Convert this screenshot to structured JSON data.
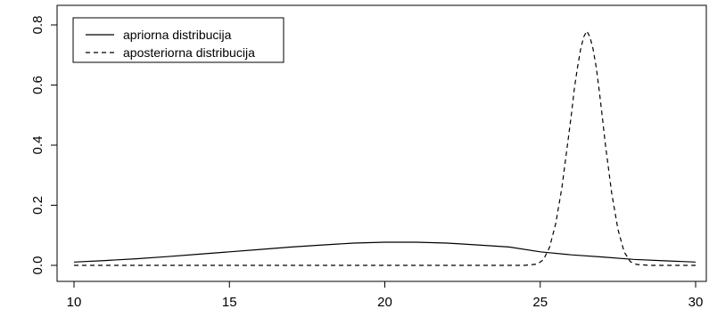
{
  "chart_data": {
    "type": "line",
    "title": "",
    "xlabel": "",
    "ylabel": "",
    "xlim": [
      10,
      30
    ],
    "ylim": [
      0,
      0.8
    ],
    "x_ticks": [
      10,
      15,
      20,
      25,
      30
    ],
    "y_ticks": [
      0.0,
      0.2,
      0.4,
      0.6,
      0.8
    ],
    "x_tick_labels": [
      "10",
      "15",
      "20",
      "25",
      "30"
    ],
    "y_tick_labels": [
      "0.0",
      "0.2",
      "0.4",
      "0.6",
      "0.8"
    ],
    "grid": false,
    "legend_position": "top-left",
    "series": [
      {
        "name": "apriorna distribucija",
        "line_style": "solid",
        "color": "#000000",
        "x": [
          10,
          11,
          12,
          13,
          14,
          15,
          16,
          17,
          18,
          19,
          20,
          21,
          22,
          23,
          24,
          25,
          26,
          27,
          28,
          29,
          30
        ],
        "y": [
          0.011,
          0.016,
          0.022,
          0.029,
          0.037,
          0.045,
          0.053,
          0.061,
          0.068,
          0.074,
          0.077,
          0.077,
          0.074,
          0.068,
          0.061,
          0.045,
          0.035,
          0.028,
          0.02,
          0.015,
          0.011
        ]
      },
      {
        "name": "aposteriorna distribucija",
        "line_style": "dashed",
        "color": "#000000",
        "x": [
          10,
          15,
          20,
          24.5,
          24.9,
          25.1,
          25.3,
          25.5,
          25.7,
          25.9,
          26.0,
          26.1,
          26.2,
          26.3,
          26.4,
          26.5,
          26.6,
          26.7,
          26.8,
          26.9,
          27.0,
          27.1,
          27.3,
          27.5,
          27.7,
          27.9,
          28.1,
          28.5,
          30
        ],
        "y": [
          0.0,
          0.0,
          0.0,
          0.0,
          0.004,
          0.018,
          0.06,
          0.14,
          0.26,
          0.42,
          0.5,
          0.59,
          0.66,
          0.72,
          0.76,
          0.78,
          0.76,
          0.72,
          0.66,
          0.58,
          0.49,
          0.4,
          0.24,
          0.12,
          0.045,
          0.012,
          0.003,
          0.0,
          0.0
        ]
      }
    ]
  }
}
